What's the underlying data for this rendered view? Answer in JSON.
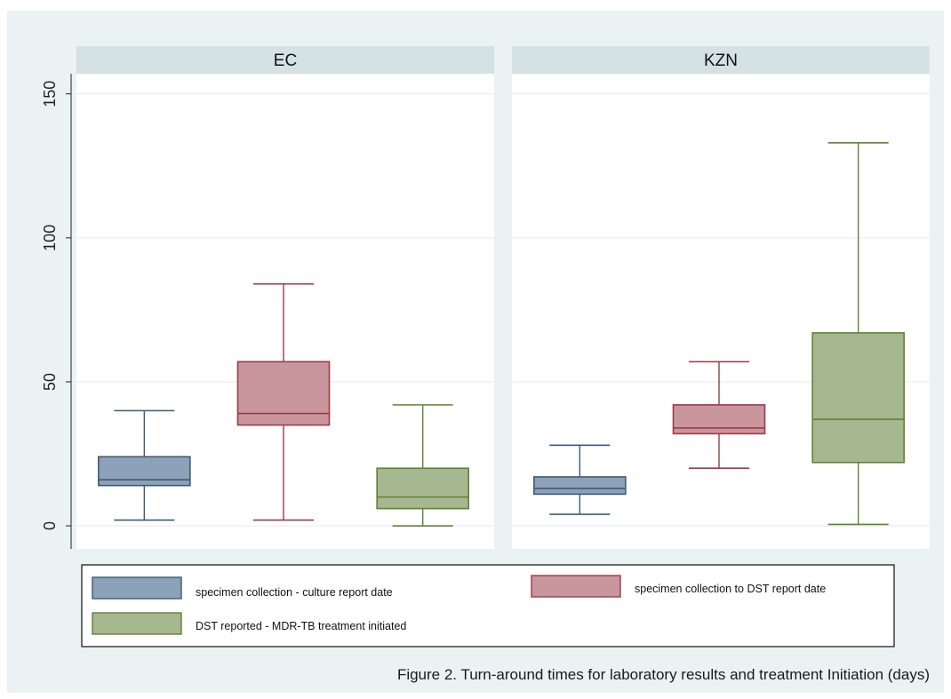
{
  "chart_data": {
    "type": "box",
    "caption": "Figure 2. Turn-around times for laboratory results and treatment Initiation (days)",
    "ylim": [
      -8,
      157
    ],
    "yticks": [
      0,
      50,
      100,
      150
    ],
    "grid": true,
    "legend_placement": "bottom",
    "series": [
      {
        "name": "specimen collection - culture report date",
        "color": "#8da2b8",
        "stroke": "#3f5a78"
      },
      {
        "name": "specimen collection to DST report date",
        "color": "#c9969d",
        "stroke": "#9b3b47"
      },
      {
        "name": "DST reported - MDR-TB treatment initiated",
        "color": "#a6b88f",
        "stroke": "#62803a"
      }
    ],
    "panels": [
      {
        "title": "EC",
        "boxes": [
          {
            "series": 0,
            "min": 2,
            "q1": 14,
            "median": 16,
            "q3": 24,
            "max": 40
          },
          {
            "series": 1,
            "min": 2,
            "q1": 35,
            "median": 39,
            "q3": 57,
            "max": 84
          },
          {
            "series": 2,
            "min": 0,
            "q1": 6,
            "median": 10,
            "q3": 20,
            "max": 42
          }
        ]
      },
      {
        "title": "KZN",
        "boxes": [
          {
            "series": 0,
            "min": 4,
            "q1": 11,
            "median": 13,
            "q3": 17,
            "max": 28
          },
          {
            "series": 1,
            "min": 20,
            "q1": 32,
            "median": 34,
            "q3": 42,
            "max": 57
          },
          {
            "series": 2,
            "min": 0.5,
            "q1": 22,
            "median": 37,
            "q3": 67,
            "max": 133
          }
        ]
      }
    ]
  }
}
